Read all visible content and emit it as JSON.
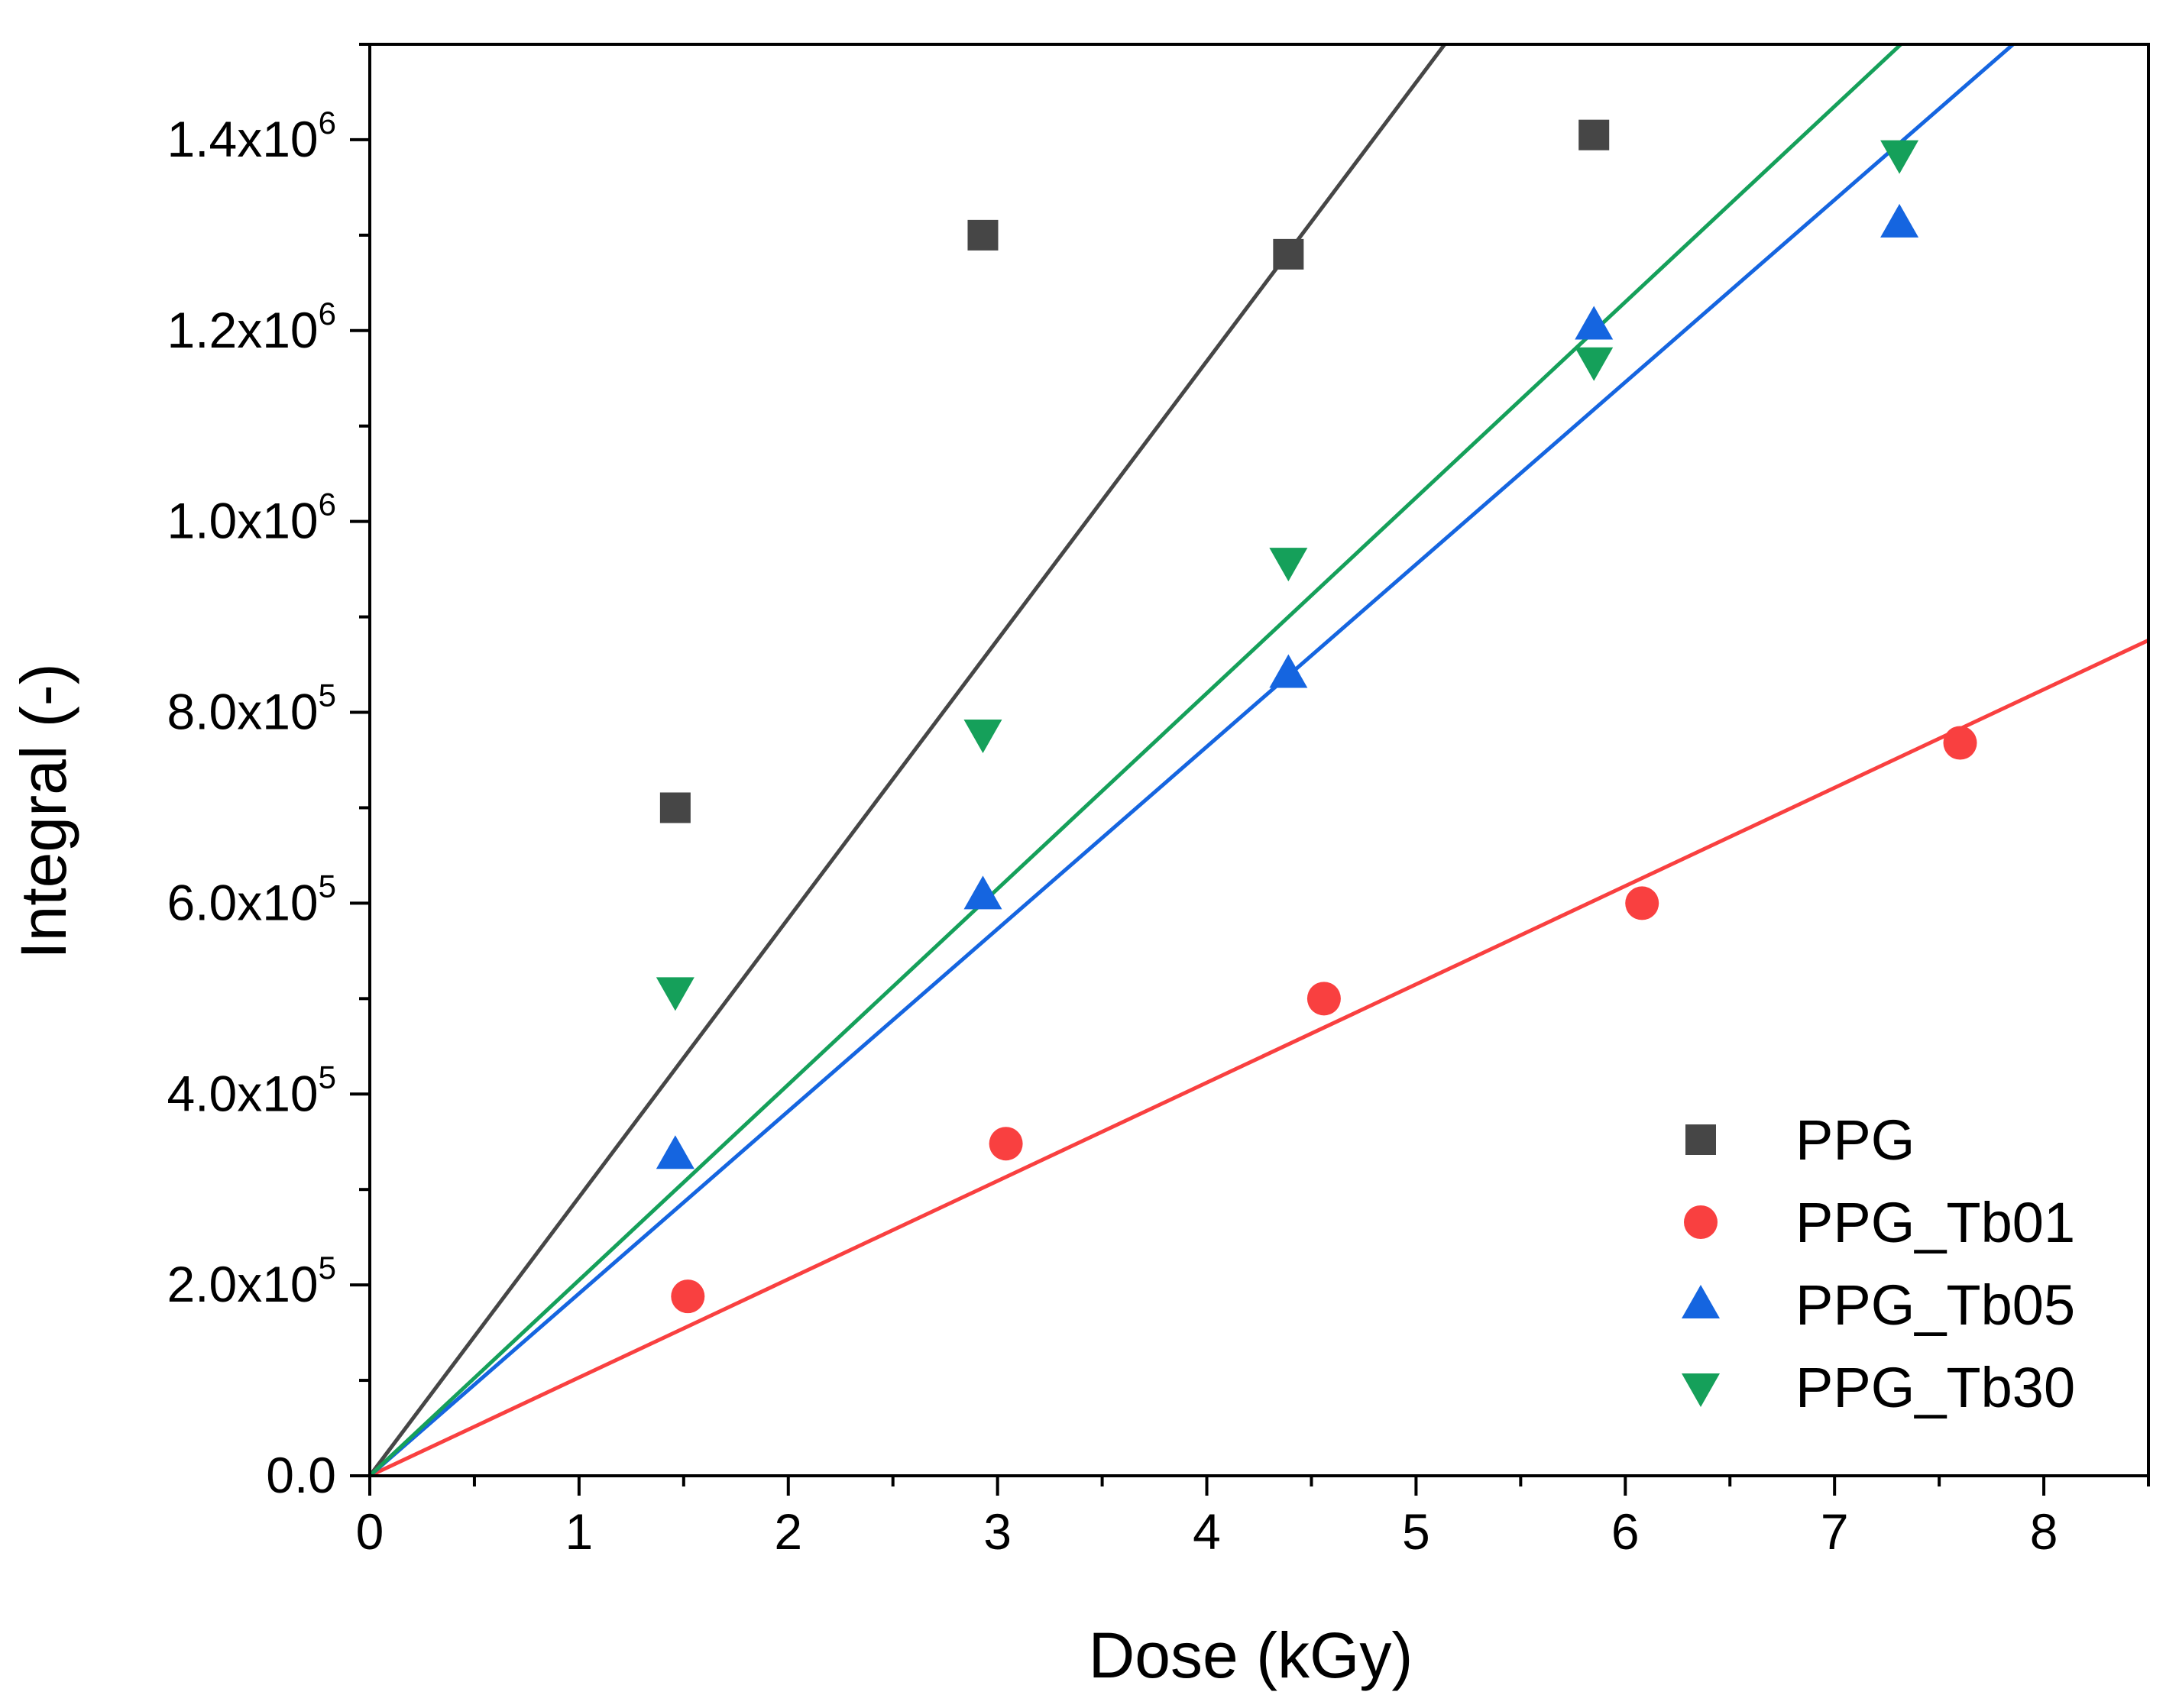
{
  "chart_data": {
    "type": "scatter",
    "title": "",
    "xlabel": "Dose (kGy)",
    "ylabel": "Integral (-)",
    "xlim": [
      0,
      8.5
    ],
    "ylim": [
      0,
      1500000
    ],
    "x_ticks": [
      "0",
      "1",
      "2",
      "3",
      "4",
      "5",
      "6",
      "7",
      "8"
    ],
    "y_ticks": [
      {
        "mantissa": "0.0",
        "exponent": ""
      },
      {
        "mantissa": "2.0x10",
        "exponent": "5"
      },
      {
        "mantissa": "4.0x10",
        "exponent": "5"
      },
      {
        "mantissa": "6.0x10",
        "exponent": "5"
      },
      {
        "mantissa": "8.0x10",
        "exponent": "5"
      },
      {
        "mantissa": "1.0x10",
        "exponent": "6"
      },
      {
        "mantissa": "1.2x10",
        "exponent": "6"
      },
      {
        "mantissa": "1.4x10",
        "exponent": "6"
      }
    ],
    "legend_position": "bottom-right",
    "series": [
      {
        "name": "PPG",
        "color": "#464646",
        "marker": "square",
        "x": [
          1.46,
          2.93,
          4.39,
          5.85
        ],
        "y": [
          700000,
          1300000,
          1280000,
          1405000
        ],
        "fit_slope": 292000
      },
      {
        "name": "PPG_Tb01",
        "color": "#f94040",
        "marker": "circle",
        "x": [
          1.52,
          3.04,
          4.56,
          6.08,
          7.6
        ],
        "y": [
          188000,
          348000,
          500000,
          600000,
          768000
        ],
        "fit_slope": 103000
      },
      {
        "name": "PPG_Tb05",
        "color": "#1565e0",
        "marker": "triangle-up",
        "x": [
          1.46,
          2.93,
          4.39,
          5.85,
          7.31
        ],
        "y": [
          336000,
          608000,
          840000,
          1205000,
          1312000
        ],
        "fit_slope": 191000
      },
      {
        "name": "PPG_Tb30",
        "color": "#15a05a",
        "marker": "triangle-down",
        "x": [
          1.46,
          2.93,
          4.39,
          5.85,
          7.31
        ],
        "y": [
          508000,
          778000,
          958000,
          1168000,
          1385000
        ],
        "fit_slope": 205000
      }
    ]
  }
}
